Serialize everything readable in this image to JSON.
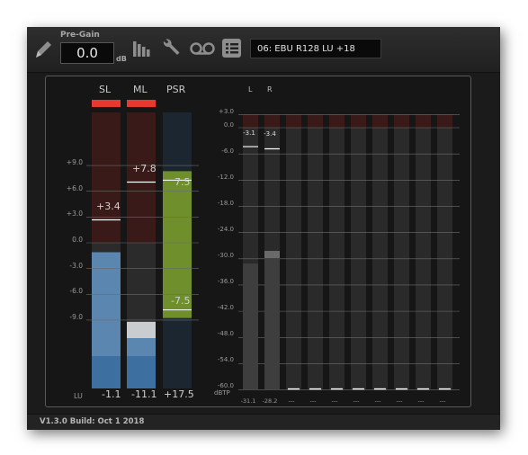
{
  "toolbar": {
    "pregain_label": "Pre-Gain",
    "pregain_value": "0.0",
    "pregain_unit": "dB",
    "preset": "06: EBU R128 LU +18",
    "icons": [
      "pencil-icon",
      "bar-meter-icon",
      "wrench-icon",
      "tape-reel-icon",
      "list-icon"
    ]
  },
  "loudness": {
    "columns": [
      "SL",
      "ML",
      "PSR"
    ],
    "unit": "LU",
    "scale": [
      "+9.0",
      "+6.0",
      "+3.0",
      "0.0",
      "-3.0",
      "-6.0",
      "-9.0"
    ],
    "sl": {
      "max": "+3.4",
      "value": "-1.1",
      "max_lu": 3.4,
      "level_lu": -1.1,
      "peak_lu": -3.0
    },
    "ml": {
      "max": "+7.8",
      "value": "-11.1",
      "max_lu": 7.8,
      "level_lu": -11.1,
      "peak_lu": -9.2
    },
    "psr": {
      "top": "7.5",
      "bottom": "-7.5",
      "value": "+17.5",
      "top_lu": 7.5,
      "bottom_lu": -7.5
    },
    "colors": {
      "over": "#e8392e",
      "level": "#3d6fa0",
      "peak": "#c9cdd0",
      "psr": "#6f8f2c"
    }
  },
  "peak": {
    "channels": [
      "L",
      "R"
    ],
    "unit": "dBTP",
    "scale": [
      "+3.0",
      "0.0",
      "-6.0",
      "-12.0",
      "-18.0",
      "-24.0",
      "-30.0",
      "-36.0",
      "-42.0",
      "-48.0",
      "-54.0",
      "-60.0"
    ],
    "l": {
      "max": "-3.1",
      "value": "-31.1",
      "max_db": -3.1,
      "level_db": -31.1
    },
    "r": {
      "max": "-3.4",
      "value": "-28.2",
      "max_db": -3.4,
      "level_db": -28.2
    },
    "inactive_value": "---"
  },
  "status": {
    "version": "V1.3.0 Build: Oct 1 2018"
  }
}
